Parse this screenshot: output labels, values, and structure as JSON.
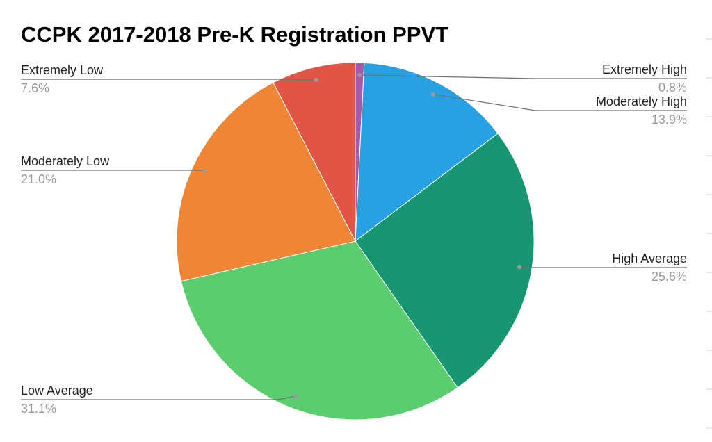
{
  "chart_data": {
    "type": "pie",
    "title": "CCPK 2017-2018 Pre-K Registration PPVT",
    "slices": [
      {
        "label": "Extremely High",
        "value": 0.8,
        "value_label": "0.8%",
        "color": "#a35bb0"
      },
      {
        "label": "Moderately High",
        "value": 13.9,
        "value_label": "13.9%",
        "color": "#27a1e2"
      },
      {
        "label": "High Average",
        "value": 25.6,
        "value_label": "25.6%",
        "color": "#179671"
      },
      {
        "label": "Low Average",
        "value": 31.1,
        "value_label": "31.1%",
        "color": "#5ccd6f"
      },
      {
        "label": "Moderately Low",
        "value": 21.0,
        "value_label": "21.0%",
        "color": "#ee8635"
      },
      {
        "label": "Extremely Low",
        "value": 7.6,
        "value_label": "7.6%",
        "color": "#e05546"
      }
    ],
    "start_angle": "12 o'clock",
    "direction": "clockwise",
    "legend": "none",
    "labels": "outside with leader lines"
  }
}
